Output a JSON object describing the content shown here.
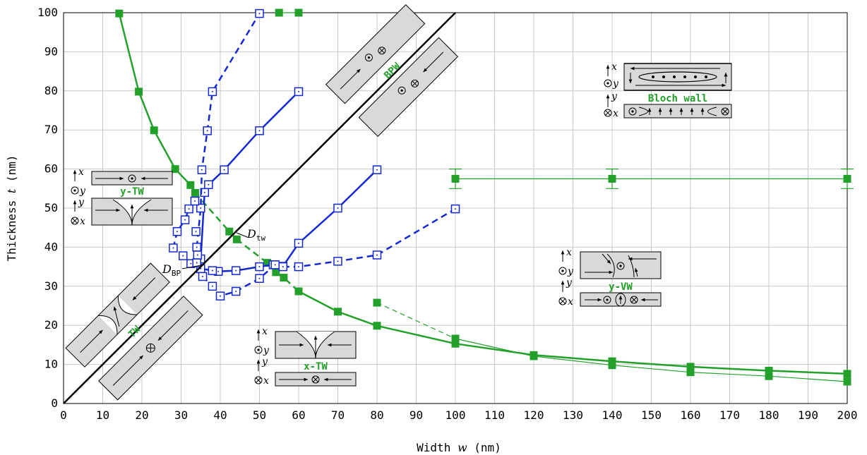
{
  "chart_data": {
    "type": "line",
    "xlabel_text": "Width ",
    "xlabel_var": "w",
    "xlabel_unit": " (nm)",
    "ylabel_text": "Thickness ",
    "ylabel_var": "t",
    "ylabel_unit": " (nm)",
    "xlim": [
      0,
      200
    ],
    "ylim": [
      0,
      100
    ],
    "xticks": [
      0,
      10,
      20,
      30,
      40,
      50,
      60,
      70,
      80,
      90,
      100,
      110,
      120,
      130,
      140,
      150,
      160,
      170,
      180,
      190,
      200
    ],
    "yticks": [
      0,
      10,
      20,
      30,
      40,
      50,
      60,
      70,
      80,
      90,
      100
    ],
    "grid": true,
    "colors": {
      "green": "#22a02a",
      "blue": "#1428d2",
      "black": "#000000"
    },
    "series": [
      {
        "color": "green",
        "style": "solid",
        "width": 2.5,
        "marker": "filled-square",
        "points": [
          [
            14.2,
            99.8
          ],
          [
            19.2,
            79.8
          ],
          [
            23.1,
            69.9
          ],
          [
            28.5,
            60
          ],
          [
            32.4,
            55.9
          ],
          [
            33.6,
            53.9
          ]
        ]
      },
      {
        "color": "green",
        "style": "dashed",
        "width": 2.5,
        "marker": "none",
        "points": [
          [
            33.6,
            53.9
          ],
          [
            42.3,
            44
          ]
        ]
      },
      {
        "color": "green",
        "style": "dashed",
        "width": 2.5,
        "marker": "filled-square",
        "points": [
          [
            42.3,
            44
          ],
          [
            44.2,
            42
          ],
          [
            52,
            36
          ],
          [
            54.2,
            33.6
          ],
          [
            56.2,
            32.2
          ],
          [
            60,
            28.7
          ]
        ]
      },
      {
        "color": "green",
        "style": "solid",
        "width": 2.5,
        "marker": "filled-square",
        "points": [
          [
            60,
            28.7
          ],
          [
            70,
            23.5
          ],
          [
            80,
            19.9
          ],
          [
            100,
            15.3
          ],
          [
            120,
            12.4
          ],
          [
            140,
            10.8
          ],
          [
            160,
            9.4
          ],
          [
            180,
            8.4
          ],
          [
            200,
            7.6
          ]
        ]
      },
      {
        "color": "green",
        "style": "solid",
        "width": 1.2,
        "marker": "filled-square",
        "points": [
          [
            100,
            16.6
          ],
          [
            120,
            12.1
          ],
          [
            140,
            9.8
          ],
          [
            160,
            8
          ],
          [
            180,
            7
          ],
          [
            200,
            5.6
          ]
        ]
      },
      {
        "color": "green",
        "style": "dashed",
        "width": 1.2,
        "marker": "filled-square",
        "points": [
          [
            80,
            25.8
          ],
          [
            100,
            16.6
          ]
        ]
      },
      {
        "color": "green",
        "style": "solid",
        "width": 1.2,
        "marker": "filled-square",
        "points": [
          [
            100,
            57.5
          ],
          [
            140,
            57.5
          ],
          [
            200,
            57.5
          ]
        ],
        "errorbar": 2.5
      },
      {
        "color": "green",
        "style": "solid",
        "width": 1.2,
        "marker": "filled-square",
        "points": [
          [
            55,
            100
          ],
          [
            60,
            100
          ]
        ]
      },
      {
        "color": "blue",
        "style": "solid",
        "width": 2.5,
        "marker": "open-square",
        "points": [
          [
            35,
            34.5
          ],
          [
            39.5,
            33.8
          ],
          [
            44,
            34
          ],
          [
            50,
            35
          ],
          [
            53.5,
            35.5
          ],
          [
            56,
            35.1
          ],
          [
            60,
            41
          ],
          [
            70,
            50
          ],
          [
            80,
            59.8
          ]
        ]
      },
      {
        "color": "blue",
        "style": "solid",
        "width": 2.5,
        "marker": "open-square",
        "points": [
          [
            35,
            34.5
          ],
          [
            35,
            37
          ],
          [
            36,
            54
          ],
          [
            37,
            56
          ],
          [
            41,
            59.8
          ],
          [
            50,
            69.8
          ],
          [
            60,
            79.8
          ]
        ]
      },
      {
        "color": "blue",
        "style": "dashed",
        "width": 2.5,
        "marker": "open-square",
        "points": [
          [
            34,
            40
          ],
          [
            35,
            50
          ],
          [
            35.3,
            59.8
          ],
          [
            36.7,
            69.8
          ],
          [
            38,
            79.8
          ],
          [
            50,
            99.8
          ]
        ]
      },
      {
        "color": "blue",
        "style": "dashed",
        "width": 2.5,
        "marker": "open-square",
        "points": [
          [
            56,
            35
          ],
          [
            60,
            35
          ],
          [
            70,
            36.4
          ],
          [
            80,
            38
          ],
          [
            100,
            49.8
          ]
        ]
      },
      {
        "color": "blue",
        "style": "dashed",
        "width": 2.5,
        "marker": "open-square",
        "points": [
          [
            28,
            39.8
          ],
          [
            29,
            44
          ],
          [
            31,
            47
          ],
          [
            32,
            49.8
          ],
          [
            33.5,
            51.8
          ]
        ]
      },
      {
        "color": "blue",
        "style": "dashed",
        "width": 2.5,
        "marker": "open-square",
        "points": [
          [
            35.5,
            32.5
          ],
          [
            38,
            30
          ],
          [
            40,
            27.5
          ],
          [
            44,
            28.7
          ],
          [
            50,
            32
          ],
          [
            54,
            35.5
          ]
        ]
      },
      {
        "color": "blue",
        "style": "none",
        "width": 0,
        "marker": "open-square",
        "points": [
          [
            30.5,
            37.8
          ],
          [
            32.5,
            35.8
          ],
          [
            33.8,
            44
          ],
          [
            34,
            36
          ],
          [
            34.2,
            38
          ],
          [
            38,
            34
          ]
        ]
      },
      {
        "color": "black",
        "style": "solid",
        "width": 2.5,
        "marker": "none",
        "points": [
          [
            0,
            0
          ],
          [
            100,
            100
          ]
        ]
      }
    ],
    "annotations": {
      "dtw": "D",
      "dtw_sub": "tw",
      "dbp": "D",
      "dbp_sub": "BP"
    },
    "insets": {
      "bloch": "Bloch wall",
      "ytw": "y-TW",
      "xtw": "x-TW",
      "yvw": "y-VW",
      "bpw": "BPW",
      "tw": "TW",
      "axis_x": "x",
      "axis_y": "y"
    }
  }
}
